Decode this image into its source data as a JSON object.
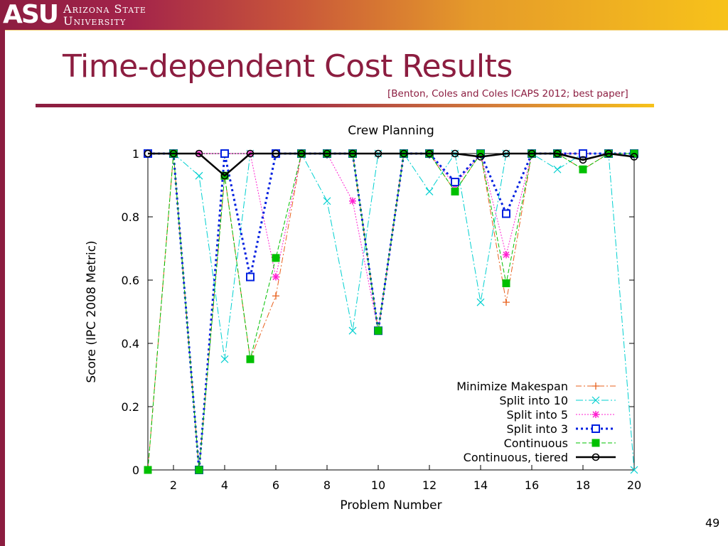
{
  "header": {
    "logo_mark": "ASU",
    "logo_line1": "Arizona State",
    "logo_line2": "University"
  },
  "slide": {
    "title": "Time-dependent Cost Results",
    "citation": "[Benton, Coles and Coles ICAPS 2012; best paper]",
    "page_number": "49"
  },
  "chart_data": {
    "type": "line",
    "title": "Crew Planning",
    "xlabel": "Problem Number",
    "ylabel": "Score (IPC 2008 Metric)",
    "xlim": [
      1,
      20
    ],
    "ylim": [
      0,
      1
    ],
    "x_ticks": [
      2,
      4,
      6,
      8,
      10,
      12,
      14,
      16,
      18,
      20
    ],
    "y_ticks": [
      0,
      0.2,
      0.4,
      0.6,
      0.8,
      1
    ],
    "y_tick_labels": [
      "0",
      "0.2",
      "0.4",
      "0.6",
      "0.8",
      "1"
    ],
    "grid": false,
    "legend_position": "bottom-right",
    "x": [
      1,
      2,
      3,
      4,
      5,
      6,
      7,
      8,
      9,
      10,
      11,
      12,
      13,
      14,
      15,
      16,
      17,
      18,
      19,
      20
    ],
    "series": [
      {
        "name": "Minimize Makespan",
        "color": "#e8601c",
        "dash": "8,3,2,3",
        "marker": "plus",
        "width": 1,
        "values": [
          0,
          1,
          0,
          0.93,
          0.35,
          0.55,
          1,
          1,
          1,
          0.44,
          1,
          1,
          0.88,
          1,
          0.53,
          1,
          1,
          0.95,
          1,
          1
        ]
      },
      {
        "name": "Split into 10",
        "color": "#00d0d0",
        "dash": "10,3,2,3",
        "marker": "cross",
        "width": 1,
        "values": [
          1,
          1,
          0.93,
          0.35,
          1,
          1,
          1,
          0.85,
          0.44,
          1,
          1,
          0.88,
          1,
          0.53,
          1,
          1,
          0.95,
          1,
          1,
          0
        ]
      },
      {
        "name": "Split into 5",
        "color": "#ff20d0",
        "dash": "2,2",
        "marker": "star",
        "width": 1,
        "values": [
          1,
          1,
          1,
          1,
          1,
          0.61,
          1,
          1,
          0.85,
          0.44,
          1,
          1,
          0.9,
          1,
          0.68,
          1,
          1,
          1,
          1,
          1
        ]
      },
      {
        "name": "Split into 3",
        "color": "#0020e0",
        "dash": "3,4",
        "marker": "square",
        "width": 3,
        "values": [
          1,
          1,
          0,
          1,
          0.61,
          1,
          1,
          1,
          1,
          0.44,
          1,
          1,
          0.91,
          1,
          0.81,
          1,
          1,
          1,
          1,
          1
        ]
      },
      {
        "name": "Continuous",
        "color": "#00c000",
        "dash": "6,3",
        "marker": "filled-square",
        "width": 1,
        "values": [
          0,
          1,
          0,
          0.93,
          0.35,
          0.67,
          1,
          1,
          1,
          0.44,
          1,
          1,
          0.88,
          1,
          0.59,
          1,
          1,
          0.95,
          1,
          1
        ]
      },
      {
        "name": "Continuous, tiered",
        "color": "#000000",
        "dash": "",
        "marker": "circle",
        "width": 2.5,
        "values": [
          1,
          1,
          1,
          0.93,
          1,
          1,
          1,
          1,
          1,
          1,
          1,
          1,
          1,
          0.99,
          1,
          1,
          1,
          0.98,
          1,
          0.99
        ]
      }
    ]
  }
}
